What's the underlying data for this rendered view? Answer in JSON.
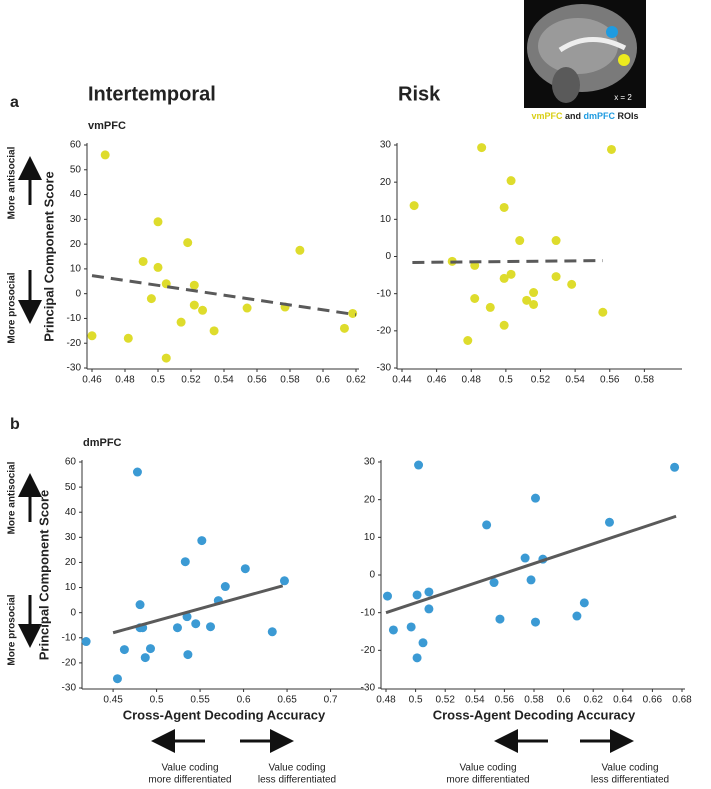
{
  "panel_labels": [
    "a",
    "b"
  ],
  "side_annotations": [
    "More antisocial",
    "More prosocial"
  ],
  "bottom_annotations": [
    [
      "Value coding",
      "more differentiated"
    ],
    [
      "Value coding",
      "less differentiated"
    ]
  ],
  "inset": {
    "slice": "x = 2",
    "caption": [
      "vmPFC",
      "and",
      "dmPFC",
      "ROIs"
    ]
  },
  "chart_data": [
    {
      "type": "scatter",
      "title": "Intertemporal",
      "subtitle": "vmPFC",
      "ylabel": "Principal Component Score",
      "xlim": [
        0.46,
        0.62
      ],
      "ylim": [
        -30,
        60
      ],
      "xticks": [
        0.46,
        0.48,
        0.5,
        0.52,
        0.54,
        0.56,
        0.58,
        0.6,
        0.62
      ],
      "yticks": [
        -30,
        -20,
        -10,
        0,
        10,
        20,
        30,
        40,
        50,
        60
      ],
      "points": {
        "color": "#dedc2c",
        "x": [
          0.468,
          0.46,
          0.482,
          0.491,
          0.496,
          0.5,
          0.5,
          0.505,
          0.505,
          0.518,
          0.522,
          0.522,
          0.514,
          0.527,
          0.534,
          0.554,
          0.577,
          0.586,
          0.613,
          0.618
        ],
        "y": [
          56,
          -17,
          -18,
          13,
          -2,
          29,
          10.6,
          4,
          -26,
          20.6,
          3.4,
          -4.6,
          -11.5,
          -6.7,
          -15,
          -5.8,
          -5.4,
          17.5,
          -14,
          -8
        ]
      },
      "trend": {
        "color": "#5a5a5a",
        "style": "dashed",
        "x": [
          0.46,
          0.62
        ],
        "y": [
          7.3,
          -8.5
        ]
      }
    },
    {
      "type": "scatter",
      "title": "Risk",
      "xlim": [
        0.44,
        0.6
      ],
      "ylim": [
        -30,
        30
      ],
      "xticks": [
        0.44,
        0.46,
        0.48,
        0.5,
        0.52,
        0.54,
        0.56,
        0.58
      ],
      "yticks": [
        -30,
        -20,
        -10,
        0,
        10,
        20,
        30
      ],
      "points": {
        "color": "#dedc2c",
        "x": [
          0.447,
          0.469,
          0.486,
          0.482,
          0.482,
          0.478,
          0.491,
          0.499,
          0.499,
          0.499,
          0.503,
          0.503,
          0.508,
          0.512,
          0.516,
          0.516,
          0.529,
          0.529,
          0.538,
          0.556,
          0.561
        ],
        "y": [
          13.7,
          -1.3,
          29.3,
          -2.4,
          -11.3,
          -22.6,
          -13.7,
          13.2,
          -5.9,
          -18.5,
          20.4,
          -4.8,
          4.3,
          -11.8,
          -9.7,
          -12.9,
          4.3,
          -5.4,
          -7.5,
          -15,
          28.8
        ]
      },
      "trend": {
        "color": "#5a5a5a",
        "style": "dashed",
        "x": [
          0.446,
          0.556
        ],
        "y": [
          -1.6,
          -1.1
        ]
      }
    },
    {
      "type": "scatter",
      "subtitle": "dmPFC",
      "ylabel": "Principal Component Score",
      "xlabel": "Cross-Agent Decoding Accuracy",
      "xlim": [
        0.42,
        0.735
      ],
      "ylim": [
        -30,
        60
      ],
      "xticks": [
        0.45,
        0.5,
        0.55,
        0.6,
        0.65,
        0.7
      ],
      "yticks": [
        -30,
        -20,
        -10,
        0,
        10,
        20,
        30,
        40,
        50,
        60
      ],
      "points": {
        "color": "#3b9ad4",
        "x": [
          0.419,
          0.455,
          0.463,
          0.481,
          0.487,
          0.493,
          0.478,
          0.481,
          0.484,
          0.524,
          0.533,
          0.535,
          0.536,
          0.545,
          0.552,
          0.562,
          0.571,
          0.579,
          0.602,
          0.633,
          0.647
        ],
        "y": [
          -11.5,
          -26.3,
          -14.7,
          -6,
          -17.9,
          -14.3,
          56,
          3.2,
          -6,
          -6,
          20.3,
          -1.6,
          -16.7,
          -4.4,
          28.7,
          -5.6,
          4.8,
          10.4,
          17.5,
          -7.6,
          12.7
        ]
      },
      "trend": {
        "color": "#5a5a5a",
        "style": "solid",
        "x": [
          0.45,
          0.645
        ],
        "y": [
          -8,
          10.7
        ]
      }
    },
    {
      "type": "scatter",
      "xlabel": "Cross-Agent Decoding Accuracy",
      "xlim": [
        0.48,
        0.68
      ],
      "ylim": [
        -30,
        30
      ],
      "xticks": [
        0.48,
        0.5,
        0.52,
        0.54,
        0.56,
        0.58,
        0.6,
        0.62,
        0.64,
        0.66,
        0.68
      ],
      "yticks": [
        -30,
        -20,
        -10,
        0,
        10,
        20,
        30
      ],
      "points": {
        "color": "#3b9ad4",
        "x": [
          0.481,
          0.485,
          0.497,
          0.501,
          0.501,
          0.502,
          0.505,
          0.509,
          0.509,
          0.548,
          0.553,
          0.557,
          0.574,
          0.578,
          0.581,
          0.581,
          0.586,
          0.609,
          0.614,
          0.631,
          0.675
        ],
        "y": [
          -5.6,
          -14.6,
          -13.8,
          -5.3,
          -22,
          29.2,
          -18,
          -4.5,
          -9,
          13.3,
          -2,
          -11.7,
          4.5,
          -1.3,
          -12.5,
          20.4,
          4.2,
          -10.9,
          -7.4,
          14,
          28.6
        ]
      },
      "trend": {
        "color": "#5a5a5a",
        "style": "solid",
        "x": [
          0.48,
          0.676
        ],
        "y": [
          -10,
          15.6
        ]
      }
    }
  ]
}
